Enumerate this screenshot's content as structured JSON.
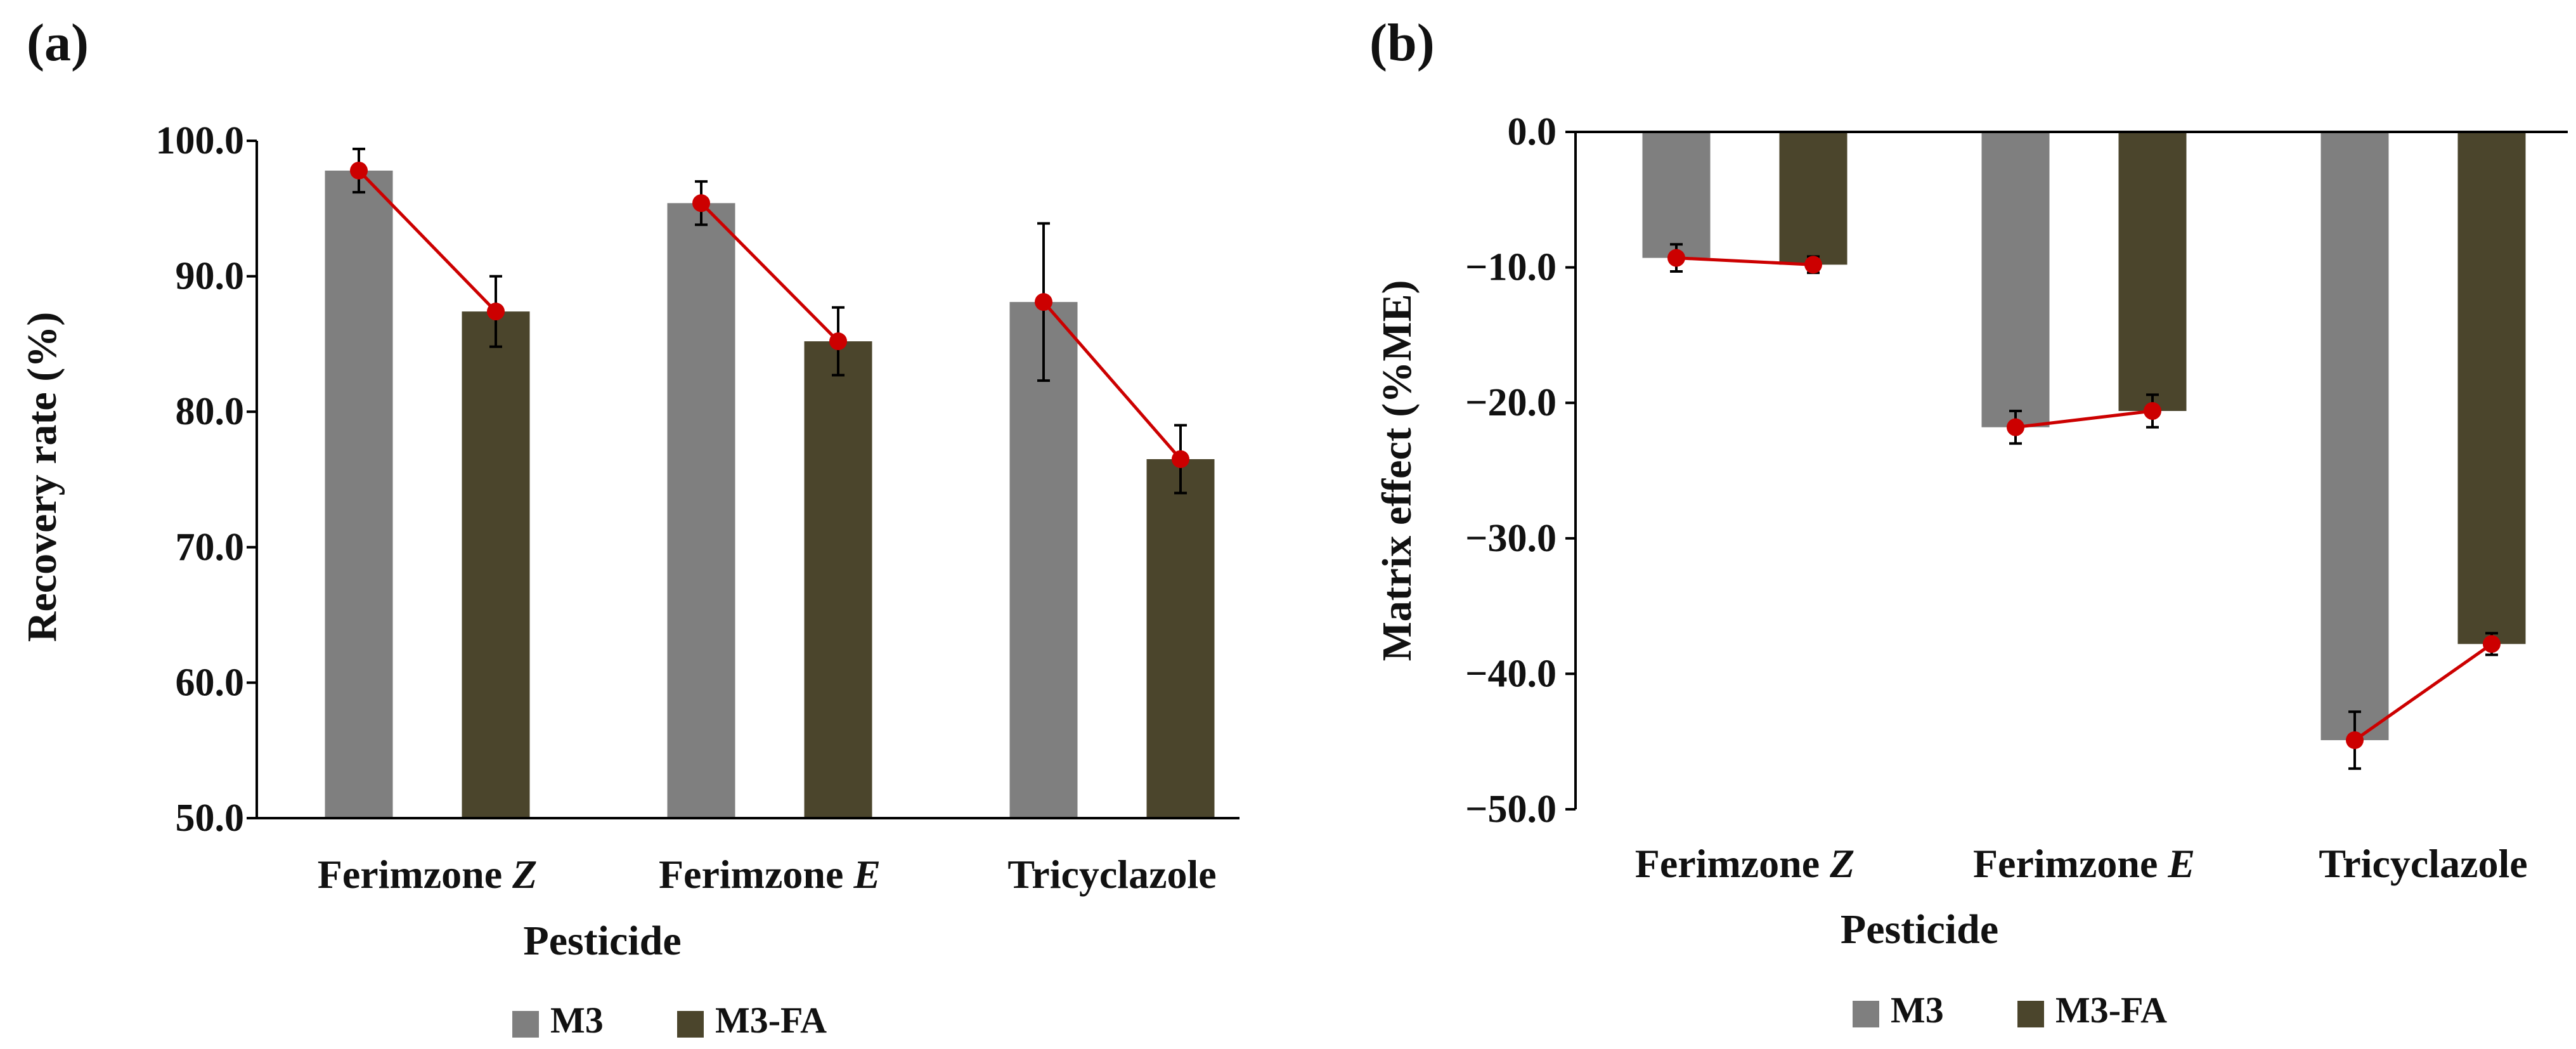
{
  "colors": {
    "M3": "#7f7f7f",
    "M3-FA": "#4b452c",
    "trend": "#cc0000",
    "axis": "#000000"
  },
  "chart_data": [
    {
      "panel_label": "(a)",
      "type": "bar",
      "xlabel": "Pesticide",
      "ylabel": "Recovery rate  (%)",
      "ylim": [
        50,
        100
      ],
      "yticks": [
        "50.0",
        "60.0",
        "70.0",
        "80.0",
        "90.0",
        "100.0"
      ],
      "categories": [
        {
          "name": "Ferimzone ",
          "italic": "Z"
        },
        {
          "name": "Ferimzone ",
          "italic": "E"
        },
        {
          "name": "Tricyclazole",
          "italic": ""
        }
      ],
      "series": [
        {
          "name": "M3",
          "values": [
            97.8,
            95.4,
            88.1
          ],
          "errors": [
            1.6,
            1.6,
            5.8
          ]
        },
        {
          "name": "M3-FA",
          "values": [
            87.4,
            85.2,
            76.5
          ],
          "errors": [
            2.6,
            2.5,
            2.5
          ]
        }
      ],
      "legend": [
        "M3",
        "M3-FA"
      ]
    },
    {
      "panel_label": "(b)",
      "type": "bar",
      "xlabel": "Pesticide",
      "ylabel": "Matrix effect (%ME)",
      "ylim": [
        -50,
        0
      ],
      "yticks": [
        "0.0",
        "−10.0",
        "−20.0",
        "−30.0",
        "−40.0",
        "−50.0"
      ],
      "categories": [
        {
          "name": "Ferimzone ",
          "italic": "Z"
        },
        {
          "name": "Ferimzone ",
          "italic": "E"
        },
        {
          "name": "Tricyclazole",
          "italic": ""
        }
      ],
      "series": [
        {
          "name": "M3",
          "values": [
            -9.3,
            -21.8,
            -44.9
          ],
          "errors": [
            1.0,
            1.2,
            2.1
          ]
        },
        {
          "name": "M3-FA",
          "values": [
            -9.8,
            -20.6,
            -37.8
          ],
          "errors": [
            0.6,
            1.2,
            0.8
          ]
        }
      ],
      "legend": [
        "M3",
        "M3-FA"
      ]
    }
  ]
}
